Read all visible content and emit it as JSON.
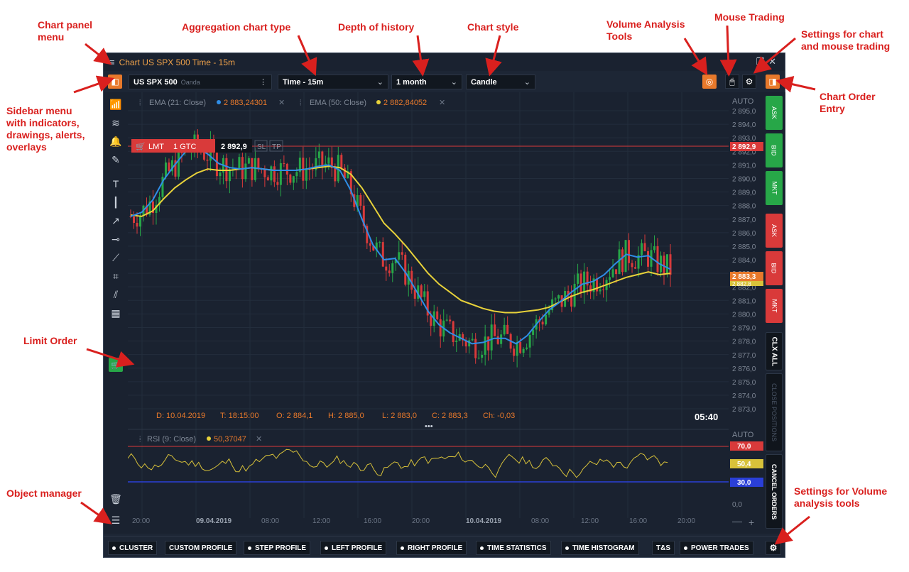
{
  "annotations": {
    "chart_panel_menu": [
      "Chart panel",
      "menu"
    ],
    "aggregation": "Aggregation chart type",
    "depth": "Depth of history",
    "style": "Chart style",
    "volume_tools": [
      "Volume Analysis",
      "Tools"
    ],
    "mouse_trading": "Mouse Trading",
    "settings_chart": [
      "Settings for chart",
      "and mouse trading"
    ],
    "sidebar_menu": [
      "Sidebar menu",
      "with indicators,",
      "drawings, alerts,",
      "overlays"
    ],
    "chart_order_entry": [
      "Chart Order",
      "Entry"
    ],
    "limit_order": "Limit Order",
    "object_manager": "Object manager",
    "settings_volume": [
      "Settings for Volume",
      "analysis tools"
    ]
  },
  "window": {
    "title": "Chart US SPX 500 Time - 15m",
    "symbol": "US SPX 500",
    "symbol_source": "Oanda",
    "aggregation": "Time - 15m",
    "history": "1 month",
    "style": "Candle"
  },
  "indicators": {
    "ema21_label": "EMA (21: Close)",
    "ema21_value": "2 883,24301",
    "ema50_label": "EMA (50: Close)",
    "ema50_value": "2 882,84052",
    "rsi_label": "RSI (9: Close)",
    "rsi_value": "50,37047"
  },
  "order": {
    "type": "LMT",
    "qty": "1 GTC",
    "price": "2 892,9",
    "sl": "SL",
    "tp": "TP"
  },
  "ohlc": {
    "d": "D: 10.04.2019",
    "t": "T: 18:15:00",
    "o": "O: 2 884,1",
    "h": "H: 2 885,0",
    "l": "L: 2 883,0",
    "c": "C: 2 883,3",
    "ch": "Ch: -0,03"
  },
  "timer": "05:40",
  "price_axis": {
    "auto": "AUTO",
    "ticks": [
      "2 895,0",
      "2 894,0",
      "2 893,0",
      "2 892,0",
      "2 891,0",
      "2 890,0",
      "2 889,0",
      "2 888,0",
      "2 887,0",
      "2 886,0",
      "2 885,0",
      "2 884,0",
      "2 883,0",
      "2 882,0",
      "2 881,0",
      "2 880,0",
      "2 879,0",
      "2 878,0",
      "2 877,0",
      "2 876,0",
      "2 875,0",
      "2 874,0",
      "2 873,0"
    ],
    "order_label": "2 892,9",
    "last_label": "2 883,3",
    "last2_label": "2 882,8"
  },
  "rsi_axis": {
    "auto": "AUTO",
    "upper": "70,0",
    "current": "50,4",
    "lower": "30,0",
    "zero": "0,0"
  },
  "time_axis": [
    "20:00",
    "09.04.2019",
    "08:00",
    "12:00",
    "16:00",
    "20:00",
    "10.04.2019",
    "08:00",
    "12:00",
    "16:00",
    "20:00"
  ],
  "order_entry": [
    "ASK",
    "BID",
    "MKT",
    "ASK",
    "BID",
    "MKT",
    "CLX ALL",
    "CLOSE POSITIONS",
    "CANCEL ORDERS"
  ],
  "bottom_tools": [
    {
      "label": "CLUSTER",
      "dot": true
    },
    {
      "label": "CUSTOM PROFILE",
      "dot": false
    },
    {
      "label": "STEP PROFILE",
      "dot": true
    },
    {
      "label": "LEFT PROFILE",
      "dot": true
    },
    {
      "label": "RIGHT PROFILE",
      "dot": true
    },
    {
      "label": "TIME STATISTICS",
      "dot": true
    },
    {
      "label": "TIME HISTOGRAM",
      "dot": true
    },
    {
      "label": "T&S",
      "dot": false
    },
    {
      "label": "POWER TRADES",
      "dot": true
    }
  ],
  "colors": {
    "accent": "#e8792b",
    "bull": "#27a748",
    "bear": "#d93a3a",
    "ema21": "#2f8ee8",
    "ema50": "#e8d23a",
    "annotation": "#d9201e"
  },
  "chart_data": {
    "type": "candlestick",
    "price_min": 2873.0,
    "price_max": 2895.0,
    "ema21": [
      2887.2,
      2887.5,
      2888.4,
      2889.9,
      2891.0,
      2892.0,
      2892.3,
      2891.8,
      2891.1,
      2890.8,
      2890.7,
      2890.8,
      2890.7,
      2890.6,
      2890.6,
      2890.6,
      2890.7,
      2890.9,
      2891.0,
      2890.6,
      2889.1,
      2887.0,
      2885.1,
      2884.0,
      2884.1,
      2883.0,
      2881.6,
      2880.2,
      2879.2,
      2878.6,
      2878.2,
      2877.8,
      2877.9,
      2878.2,
      2878.2,
      2877.8,
      2878.4,
      2879.4,
      2880.3,
      2880.9,
      2881.6,
      2882.2,
      2882.4,
      2882.9,
      2883.7,
      2884.4,
      2884.2,
      2884.3,
      2883.7,
      2883.3
    ],
    "ema50": [
      2887.3,
      2887.2,
      2887.6,
      2888.5,
      2889.3,
      2889.9,
      2890.4,
      2890.7,
      2890.6,
      2890.6,
      2890.7,
      2890.8,
      2890.7,
      2890.6,
      2890.6,
      2890.6,
      2890.7,
      2890.8,
      2890.9,
      2890.8,
      2890.3,
      2889.3,
      2888.0,
      2886.7,
      2885.9,
      2885.0,
      2884.0,
      2883.0,
      2882.2,
      2881.6,
      2881.0,
      2880.7,
      2880.4,
      2880.2,
      2880.1,
      2880.1,
      2880.2,
      2880.3,
      2880.5,
      2880.9,
      2881.3,
      2881.6,
      2881.8,
      2882.1,
      2882.4,
      2882.7,
      2882.9,
      2883.1,
      2882.9,
      2883.0
    ]
  }
}
